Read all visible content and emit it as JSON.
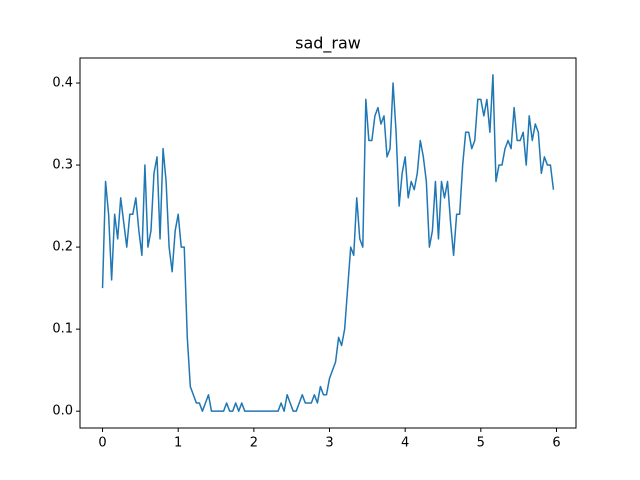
{
  "chart_data": {
    "type": "line",
    "title": "sad_raw",
    "x": [
      0,
      0.04,
      0.08,
      0.12,
      0.16,
      0.2,
      0.24,
      0.28,
      0.32,
      0.36,
      0.4,
      0.44,
      0.48,
      0.52,
      0.56,
      0.6,
      0.64,
      0.68,
      0.72,
      0.76,
      0.8,
      0.84,
      0.88,
      0.92,
      0.96,
      1,
      1.04,
      1.08,
      1.12,
      1.16,
      1.2,
      1.24,
      1.28,
      1.32,
      1.36,
      1.4,
      1.44,
      1.48,
      1.52,
      1.56,
      1.6,
      1.64,
      1.68,
      1.72,
      1.76,
      1.8,
      1.84,
      1.88,
      1.92,
      1.96,
      2,
      2.04,
      2.08,
      2.12,
      2.16,
      2.2,
      2.24,
      2.28,
      2.32,
      2.36,
      2.4,
      2.44,
      2.48,
      2.52,
      2.56,
      2.6,
      2.64,
      2.68,
      2.72,
      2.76,
      2.8,
      2.84,
      2.88,
      2.92,
      2.96,
      3,
      3.04,
      3.08,
      3.12,
      3.16,
      3.2,
      3.24,
      3.28,
      3.32,
      3.36,
      3.4,
      3.44,
      3.48,
      3.52,
      3.56,
      3.6,
      3.64,
      3.68,
      3.72,
      3.76,
      3.8,
      3.84,
      3.88,
      3.92,
      3.96,
      4,
      4.04,
      4.08,
      4.12,
      4.16,
      4.2,
      4.24,
      4.28,
      4.32,
      4.36,
      4.4,
      4.44,
      4.48,
      4.52,
      4.56,
      4.6,
      4.64,
      4.68,
      4.72,
      4.76,
      4.8,
      4.84,
      4.88,
      4.92,
      4.96,
      5,
      5.04,
      5.08,
      5.12,
      5.16,
      5.2,
      5.24,
      5.28,
      5.32,
      5.36,
      5.4,
      5.44,
      5.48,
      5.52,
      5.56,
      5.6,
      5.64,
      5.68,
      5.72,
      5.76,
      5.8,
      5.84,
      5.88,
      5.92,
      5.96
    ],
    "series": [
      {
        "color": "#1f77b4",
        "values": [
          0.15,
          0.28,
          0.24,
          0.16,
          0.24,
          0.21,
          0.26,
          0.23,
          0.2,
          0.24,
          0.24,
          0.26,
          0.22,
          0.19,
          0.3,
          0.2,
          0.22,
          0.29,
          0.31,
          0.21,
          0.32,
          0.28,
          0.2,
          0.17,
          0.22,
          0.24,
          0.2,
          0.2,
          0.09,
          0.03,
          0.02,
          0.01,
          0.01,
          0.0,
          0.01,
          0.02,
          0,
          0,
          0,
          0,
          0,
          0.01,
          0,
          0,
          0.01,
          0,
          0.01,
          0,
          0,
          0,
          0,
          0,
          0,
          0,
          0,
          0,
          0,
          0,
          0,
          0.01,
          0,
          0.02,
          0.01,
          0,
          0,
          0.01,
          0.02,
          0.01,
          0.01,
          0.01,
          0.02,
          0.01,
          0.03,
          0.02,
          0.02,
          0.04,
          0.05,
          0.06,
          0.09,
          0.08,
          0.1,
          0.15,
          0.2,
          0.19,
          0.26,
          0.21,
          0.2,
          0.38,
          0.33,
          0.33,
          0.36,
          0.37,
          0.35,
          0.36,
          0.31,
          0.32,
          0.4,
          0.34,
          0.25,
          0.29,
          0.31,
          0.26,
          0.28,
          0.27,
          0.29,
          0.33,
          0.31,
          0.28,
          0.2,
          0.22,
          0.28,
          0.21,
          0.28,
          0.26,
          0.28,
          0.23,
          0.19,
          0.24,
          0.24,
          0.3,
          0.34,
          0.34,
          0.32,
          0.33,
          0.38,
          0.38,
          0.36,
          0.38,
          0.34,
          0.41,
          0.28,
          0.3,
          0.3,
          0.32,
          0.33,
          0.32,
          0.37,
          0.33,
          0.33,
          0.34,
          0.3,
          0.36,
          0.33,
          0.35,
          0.34,
          0.29,
          0.31,
          0.3,
          0.3,
          0.27
        ]
      }
    ],
    "xlim": [
      -0.298,
      6.258
    ],
    "ylim": [
      -0.0205,
      0.4305
    ],
    "xticks": [
      0,
      1,
      2,
      3,
      4,
      5,
      6
    ],
    "yticks": [
      {
        "value": 0,
        "label": "0.0"
      },
      0.1,
      0.2,
      0.3,
      0.4
    ]
  }
}
